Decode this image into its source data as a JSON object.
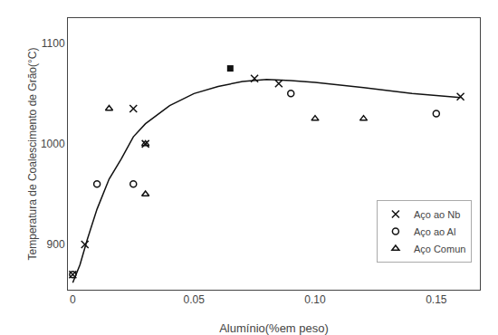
{
  "chart_data": {
    "type": "scatter",
    "xlabel": "Alumínio(%em peso)",
    "ylabel": "Temperatura de Coalescimento de Grão(°C)",
    "xlim": [
      -0.002,
      0.168
    ],
    "ylim": [
      855,
      1125
    ],
    "xticks": [
      0,
      0.05,
      {
        "value": 0.1,
        "label": "0.10"
      },
      0.15
    ],
    "yticks": [
      900,
      1000,
      1100
    ],
    "grid": false,
    "legend": "lower right",
    "series": [
      {
        "type": "line",
        "color": "#111111",
        "line_style": "solid",
        "x": [
          0.0,
          0.003,
          0.006,
          0.01,
          0.015,
          0.02,
          0.025,
          0.03,
          0.04,
          0.05,
          0.06,
          0.07,
          0.08,
          0.09,
          0.1,
          0.12,
          0.14,
          0.16
        ],
        "values": [
          862,
          880,
          905,
          935,
          965,
          985,
          1007,
          1020,
          1038,
          1050,
          1057,
          1062,
          1064,
          1063,
          1061,
          1056,
          1050,
          1046
        ]
      },
      {
        "name": "Aço ao Nb",
        "type": "scatter",
        "color": "#111111",
        "marker": "x",
        "x": [
          0.0,
          0.005,
          0.025,
          0.03,
          0.075,
          0.085,
          0.16
        ],
        "values": [
          870,
          900,
          1035,
          1000,
          1065,
          1060,
          1047
        ]
      },
      {
        "name": "Aço ao Al",
        "type": "scatter",
        "color": "#111111",
        "marker": "circle-open",
        "x": [
          0.0,
          0.01,
          0.025,
          0.09,
          0.15
        ],
        "values": [
          870,
          960,
          960,
          1050,
          1030
        ]
      },
      {
        "name": "Aço Comun",
        "type": "scatter",
        "color": "#111111",
        "marker": "triangle-up-open",
        "x": [
          0.015,
          0.03,
          0.03,
          0.1,
          0.12
        ],
        "values": [
          1035,
          950,
          1000,
          1025,
          1025
        ]
      },
      {
        "type": "scatter",
        "color": "#111111",
        "marker": "square",
        "x": [
          0.065
        ],
        "values": [
          1075
        ]
      }
    ]
  }
}
